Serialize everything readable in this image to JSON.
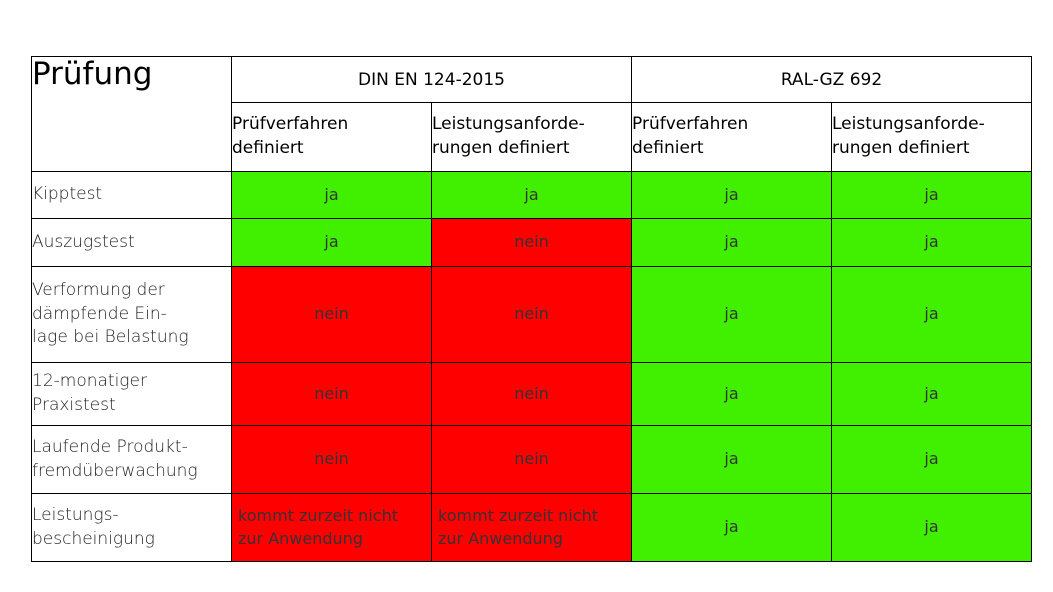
{
  "title": "Prüfung",
  "groups": [
    "DIN EN 124-2015",
    "RAL-GZ 692"
  ],
  "subheaders": [
    "Prüfverfahren\ndefiniert",
    "Leistungsanforde-\nrungen definiert",
    "Prüfverfahren\ndefiniert",
    "Leistungsanforde-\nrungen definiert"
  ],
  "colors": {
    "yes": "#41f000",
    "no": "#ff0000"
  },
  "rows": [
    {
      "label": "Kipptest",
      "cells": [
        {
          "text": "ja",
          "status": "yes"
        },
        {
          "text": "ja",
          "status": "yes"
        },
        {
          "text": "ja",
          "status": "yes"
        },
        {
          "text": "ja",
          "status": "yes"
        }
      ]
    },
    {
      "label": "Auszugstest",
      "cells": [
        {
          "text": "ja",
          "status": "yes"
        },
        {
          "text": "nein",
          "status": "no"
        },
        {
          "text": "ja",
          "status": "yes"
        },
        {
          "text": "ja",
          "status": "yes"
        }
      ]
    },
    {
      "label": "Verformung der\ndämpfende Ein-\nlage bei Belastung",
      "cells": [
        {
          "text": "nein",
          "status": "no"
        },
        {
          "text": "nein",
          "status": "no"
        },
        {
          "text": "ja",
          "status": "yes"
        },
        {
          "text": "ja",
          "status": "yes"
        }
      ]
    },
    {
      "label": "12-monatiger\nPraxistest",
      "cells": [
        {
          "text": "nein",
          "status": "no"
        },
        {
          "text": "nein",
          "status": "no"
        },
        {
          "text": "ja",
          "status": "yes"
        },
        {
          "text": "ja",
          "status": "yes"
        }
      ]
    },
    {
      "label": "Laufende Produkt-\nfremdüberwachung",
      "cells": [
        {
          "text": "nein",
          "status": "no"
        },
        {
          "text": "nein",
          "status": "no"
        },
        {
          "text": "ja",
          "status": "yes"
        },
        {
          "text": "ja",
          "status": "yes"
        }
      ]
    },
    {
      "label": "Leistungs-\nbescheinigung",
      "cells": [
        {
          "text": "kommt zurzeit nicht\nzur Anwendung",
          "status": "no"
        },
        {
          "text": "kommt zurzeit nicht\nzur Anwendung",
          "status": "no"
        },
        {
          "text": "ja",
          "status": "yes"
        },
        {
          "text": "ja",
          "status": "yes"
        }
      ]
    }
  ]
}
